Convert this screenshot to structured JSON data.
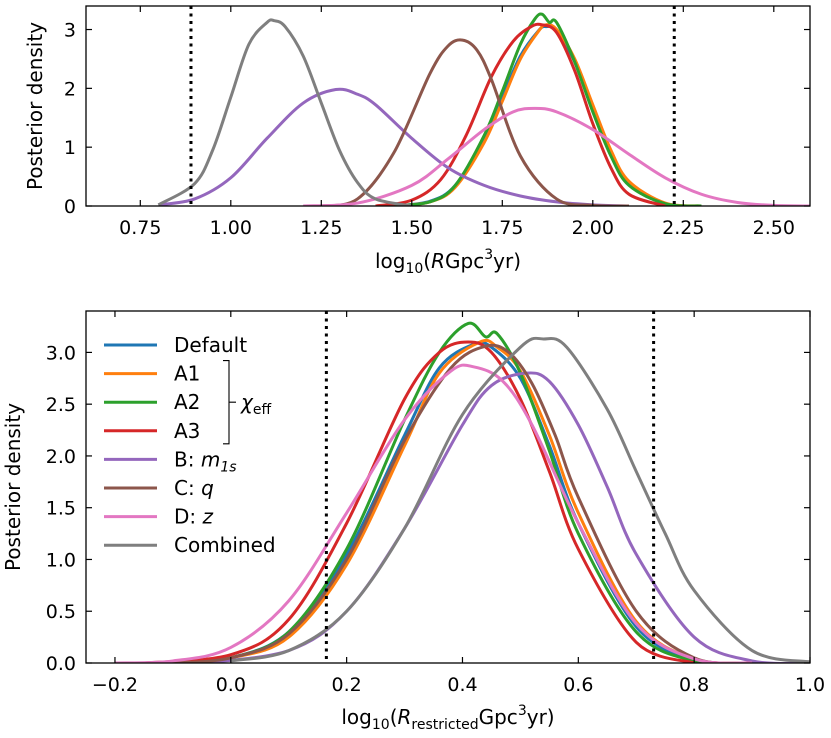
{
  "chart_data": [
    {
      "type": "line",
      "title": "",
      "xlabel_prefix": "log",
      "xlabel_sub": "10",
      "xlabel_open": "(",
      "xlabel_var": "R",
      "xlabel_unit": "Gpc",
      "xlabel_sup": "3",
      "xlabel_tail": "yr)",
      "ylabel": "Posterior density",
      "xlim": [
        0.6,
        2.6
      ],
      "ylim": [
        0,
        3.4
      ],
      "xticks": [
        0.75,
        1.0,
        1.25,
        1.5,
        1.75,
        2.0,
        2.25,
        2.5
      ],
      "xtick_labels": [
        "0.75",
        "1.00",
        "1.25",
        "1.50",
        "1.75",
        "2.00",
        "2.25",
        "2.50"
      ],
      "yticks": [
        0,
        1,
        2,
        3
      ],
      "ytick_labels": [
        "0",
        "1",
        "2",
        "3"
      ],
      "vlines": [
        0.89,
        2.225
      ],
      "series": [
        {
          "name": "Default",
          "color": "#1f77b4",
          "x": [
            1.45,
            1.55,
            1.62,
            1.7,
            1.75,
            1.8,
            1.85,
            1.87,
            1.9,
            1.95,
            2.0,
            2.05,
            2.1,
            2.2,
            2.3
          ],
          "y": [
            0,
            0.08,
            0.35,
            1.15,
            1.85,
            2.55,
            2.98,
            3.05,
            2.98,
            2.45,
            1.65,
            0.9,
            0.38,
            0.04,
            0
          ]
        },
        {
          "name": "A1",
          "color": "#ff7f0e",
          "x": [
            1.45,
            1.55,
            1.62,
            1.7,
            1.75,
            1.8,
            1.85,
            1.87,
            1.9,
            1.95,
            2.0,
            2.05,
            2.1,
            2.2,
            2.3
          ],
          "y": [
            0,
            0.07,
            0.32,
            1.08,
            1.78,
            2.5,
            2.97,
            3.08,
            3.0,
            2.5,
            1.72,
            0.95,
            0.42,
            0.05,
            0
          ]
        },
        {
          "name": "A2",
          "color": "#2ca02c",
          "x": [
            1.45,
            1.55,
            1.62,
            1.7,
            1.75,
            1.8,
            1.84,
            1.86,
            1.88,
            1.9,
            1.95,
            2.0,
            2.05,
            2.1,
            2.2,
            2.3
          ],
          "y": [
            0,
            0.07,
            0.35,
            1.2,
            1.95,
            2.75,
            3.18,
            3.26,
            3.12,
            3.12,
            2.45,
            1.6,
            0.85,
            0.35,
            0.04,
            0
          ]
        },
        {
          "name": "A3",
          "color": "#d62728",
          "x": [
            1.4,
            1.5,
            1.58,
            1.65,
            1.72,
            1.78,
            1.83,
            1.86,
            1.9,
            1.95,
            2.0,
            2.05,
            2.1,
            2.2
          ],
          "y": [
            0,
            0.1,
            0.45,
            1.2,
            2.2,
            2.8,
            3.05,
            3.08,
            2.95,
            2.3,
            1.4,
            0.65,
            0.2,
            0
          ]
        },
        {
          "name": "B: m_1s",
          "color": "#9467bd",
          "x": [
            0.8,
            0.9,
            1.0,
            1.1,
            1.2,
            1.29,
            1.35,
            1.4,
            1.5,
            1.6,
            1.7,
            1.8,
            1.9,
            2.0,
            2.1
          ],
          "y": [
            0.02,
            0.12,
            0.48,
            1.15,
            1.75,
            1.98,
            1.9,
            1.72,
            1.15,
            0.65,
            0.35,
            0.17,
            0.07,
            0.02,
            0
          ]
        },
        {
          "name": "C: q",
          "color": "#8c564b",
          "x": [
            1.25,
            1.35,
            1.45,
            1.55,
            1.6,
            1.64,
            1.68,
            1.72,
            1.8,
            1.9,
            2.0,
            2.1
          ],
          "y": [
            0,
            0.12,
            0.9,
            2.25,
            2.72,
            2.82,
            2.65,
            2.15,
            0.85,
            0.12,
            0.01,
            0
          ]
        },
        {
          "name": "D: z",
          "color": "#e377c2",
          "x": [
            1.2,
            1.35,
            1.5,
            1.6,
            1.7,
            1.78,
            1.84,
            1.9,
            2.0,
            2.1,
            2.2,
            2.3,
            2.4,
            2.5,
            2.6
          ],
          "y": [
            0,
            0.05,
            0.35,
            0.8,
            1.3,
            1.6,
            1.66,
            1.6,
            1.3,
            0.88,
            0.48,
            0.2,
            0.06,
            0.01,
            0
          ]
        },
        {
          "name": "Combined",
          "color": "#7f7f7f",
          "x": [
            0.8,
            0.9,
            0.95,
            1.0,
            1.05,
            1.1,
            1.12,
            1.15,
            1.2,
            1.25,
            1.3,
            1.35,
            1.4,
            1.5
          ],
          "y": [
            0.02,
            0.38,
            0.95,
            1.85,
            2.75,
            3.12,
            3.15,
            3.05,
            2.55,
            1.75,
            0.95,
            0.4,
            0.12,
            0
          ]
        }
      ]
    },
    {
      "type": "line",
      "title": "",
      "xlabel_prefix": "log",
      "xlabel_sub": "10",
      "xlabel_open": "(",
      "xlabel_var": "R",
      "xlabel_varsub": "restricted",
      "xlabel_unit": "Gpc",
      "xlabel_sup": "3",
      "xlabel_tail": "yr)",
      "ylabel": "Posterior density",
      "xlim": [
        -0.25,
        1.0
      ],
      "ylim": [
        0,
        3.4
      ],
      "xticks": [
        -0.2,
        0.0,
        0.2,
        0.4,
        0.6,
        0.8,
        1.0
      ],
      "xtick_labels": [
        "−0.2",
        "0.0",
        "0.2",
        "0.4",
        "0.6",
        "0.8",
        "1.0"
      ],
      "yticks": [
        0,
        0.5,
        1.0,
        1.5,
        2.0,
        2.5,
        3.0
      ],
      "ytick_labels": [
        "0.0",
        "0.5",
        "1.0",
        "1.5",
        "2.0",
        "2.5",
        "3.0"
      ],
      "vlines": [
        0.165,
        0.73
      ],
      "legend_position": "upper-left",
      "legend_bracket_label": "χ",
      "legend_bracket_sub": "eff",
      "series": [
        {
          "name": "Default",
          "color": "#1f77b4",
          "x": [
            -0.1,
            0.0,
            0.1,
            0.2,
            0.3,
            0.36,
            0.42,
            0.45,
            0.5,
            0.55,
            0.6,
            0.7,
            0.8,
            0.9
          ],
          "y": [
            0,
            0.05,
            0.3,
            1.05,
            2.2,
            2.85,
            3.08,
            3.05,
            2.75,
            2.1,
            1.35,
            0.35,
            0.03,
            0
          ]
        },
        {
          "name": "A1",
          "color": "#ff7f0e",
          "x": [
            -0.1,
            0.0,
            0.1,
            0.2,
            0.3,
            0.36,
            0.43,
            0.46,
            0.5,
            0.55,
            0.6,
            0.7,
            0.8,
            0.9
          ],
          "y": [
            0,
            0.05,
            0.25,
            0.95,
            2.1,
            2.8,
            3.1,
            3.05,
            2.82,
            2.2,
            1.45,
            0.4,
            0.04,
            0
          ]
        },
        {
          "name": "A2",
          "color": "#2ca02c",
          "x": [
            -0.1,
            0.0,
            0.1,
            0.2,
            0.3,
            0.36,
            0.41,
            0.44,
            0.46,
            0.5,
            0.55,
            0.6,
            0.7,
            0.8,
            0.9
          ],
          "y": [
            0,
            0.05,
            0.3,
            1.1,
            2.35,
            3.0,
            3.28,
            3.15,
            3.18,
            2.8,
            2.05,
            1.25,
            0.3,
            0.02,
            0
          ]
        },
        {
          "name": "A3",
          "color": "#d62728",
          "x": [
            -0.15,
            0.0,
            0.1,
            0.2,
            0.3,
            0.36,
            0.41,
            0.45,
            0.5,
            0.55,
            0.6,
            0.7,
            0.8
          ],
          "y": [
            0,
            0.08,
            0.42,
            1.35,
            2.55,
            3.0,
            3.1,
            3.0,
            2.55,
            1.85,
            1.1,
            0.2,
            0
          ]
        },
        {
          "name": "B: m_1s",
          "color": "#9467bd",
          "x": [
            -0.05,
            0.1,
            0.2,
            0.3,
            0.4,
            0.45,
            0.51,
            0.55,
            0.6,
            0.65,
            0.7,
            0.8,
            0.9,
            1.0
          ],
          "y": [
            0,
            0.12,
            0.5,
            1.3,
            2.3,
            2.68,
            2.8,
            2.72,
            2.3,
            1.7,
            1.05,
            0.25,
            0.02,
            0
          ]
        },
        {
          "name": "C: q",
          "color": "#8c564b",
          "x": [
            -0.1,
            0.0,
            0.1,
            0.2,
            0.3,
            0.38,
            0.44,
            0.48,
            0.52,
            0.56,
            0.6,
            0.7,
            0.8,
            0.9
          ],
          "y": [
            0,
            0.05,
            0.28,
            1.0,
            2.15,
            2.85,
            3.06,
            3.0,
            2.7,
            2.2,
            1.6,
            0.5,
            0.05,
            0
          ]
        },
        {
          "name": "D: z",
          "color": "#e377c2",
          "x": [
            -0.2,
            -0.1,
            0.0,
            0.1,
            0.2,
            0.3,
            0.38,
            0.42,
            0.47,
            0.52,
            0.6,
            0.7,
            0.8,
            0.9
          ],
          "y": [
            0,
            0.02,
            0.15,
            0.6,
            1.45,
            2.35,
            2.82,
            2.86,
            2.72,
            2.3,
            1.35,
            0.38,
            0.04,
            0
          ]
        },
        {
          "name": "Combined",
          "color": "#7f7f7f",
          "x": [
            0.0,
            0.1,
            0.2,
            0.3,
            0.4,
            0.5,
            0.54,
            0.58,
            0.65,
            0.7,
            0.75,
            0.8,
            0.9,
            1.0
          ],
          "y": [
            0.02,
            0.12,
            0.5,
            1.3,
            2.4,
            3.05,
            3.13,
            3.05,
            2.45,
            1.85,
            1.25,
            0.7,
            0.12,
            0.01
          ]
        }
      ]
    }
  ]
}
